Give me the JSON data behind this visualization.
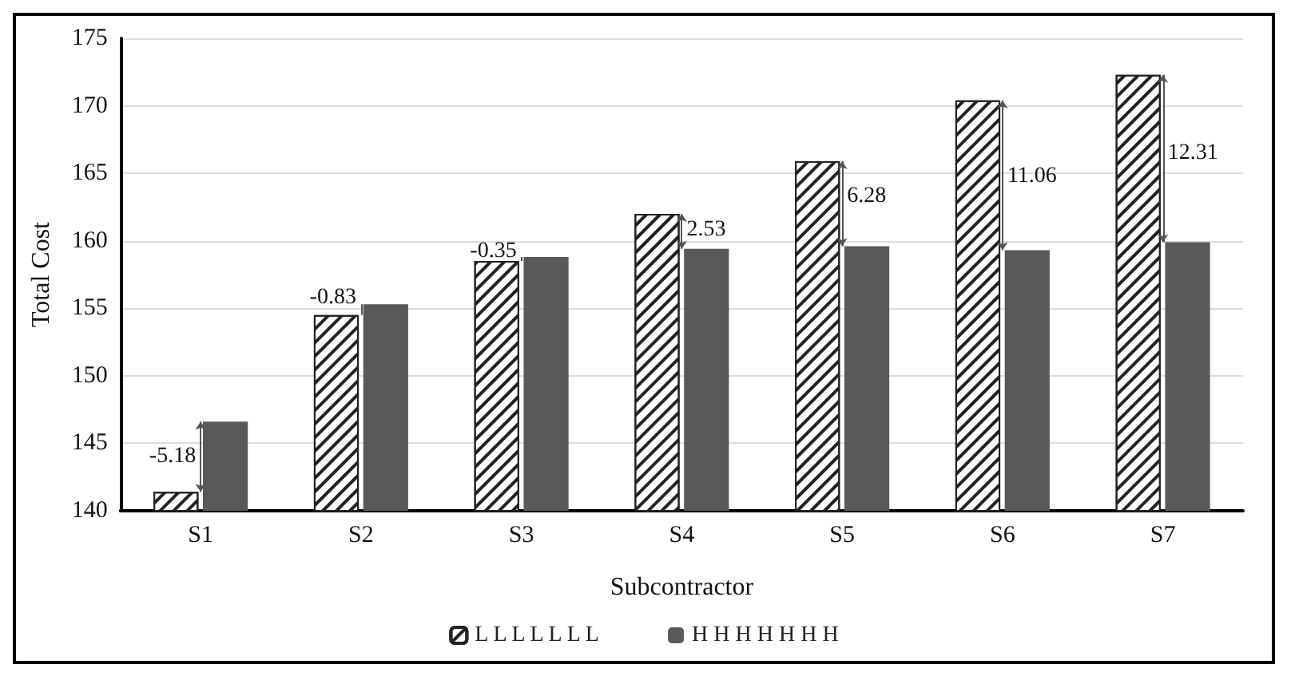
{
  "chart_data": {
    "type": "bar",
    "xlabel": "Subcontractor",
    "ylabel": "Total Cost",
    "categories": [
      "S1",
      "S2",
      "S3",
      "S4",
      "S5",
      "S6",
      "S7"
    ],
    "series": [
      {
        "name": "L L L L L L L",
        "color": "#ffffff",
        "values": [
          141.4,
          154.5,
          158.5,
          162.0,
          165.9,
          170.4,
          172.3
        ]
      },
      {
        "name": "H H H H H H H",
        "color": "#595959",
        "values": [
          146.6,
          155.3,
          158.8,
          159.4,
          159.6,
          159.3,
          159.9
        ]
      }
    ],
    "annotations": [
      {
        "text": "-5.18",
        "x": "S1",
        "y": 144
      },
      {
        "text": "-0.83",
        "x": "S2",
        "y": 155.8
      },
      {
        "text": "-0.35",
        "x": "S3",
        "y": 159.2
      },
      {
        "text": "2.53",
        "x": "S4",
        "y": 160.8
      },
      {
        "text": "6.28",
        "x": "S5",
        "y": 163.3
      },
      {
        "text": "11.06",
        "x": "S6",
        "y": 164.8
      },
      {
        "text": "12.31",
        "x": "S7",
        "y": 166.5
      }
    ],
    "ylim": [
      140,
      175
    ],
    "yticks": [
      140,
      145,
      150,
      155,
      160,
      165,
      170,
      175
    ],
    "grid": "y",
    "legend": "bottom"
  }
}
